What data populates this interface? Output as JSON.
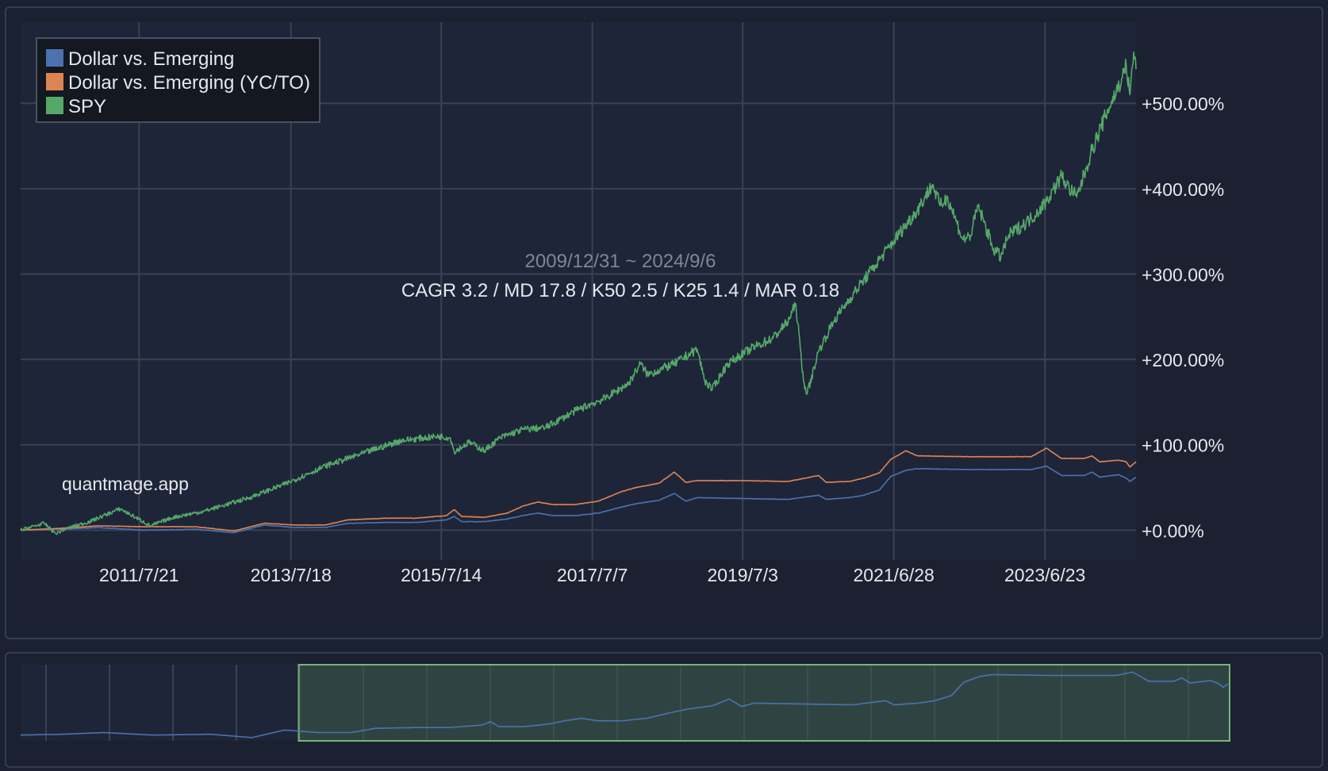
{
  "chart_data": {
    "type": "line",
    "title": "2009/12/31 ~ 2024/9/6",
    "subtitle": "CAGR 3.2 / MD 17.8 / K50 2.5 / K25 1.4 / MAR 0.18",
    "watermark": "quantmage.app",
    "x_tick_labels": [
      "2011/7/21",
      "2013/7/18",
      "2015/7/14",
      "2017/7/7",
      "2019/7/3",
      "2021/6/28",
      "2023/6/23"
    ],
    "y_tick_labels": [
      "+0.00%",
      "+100.00%",
      "+200.00%",
      "+300.00%",
      "+400.00%",
      "+500.00%"
    ],
    "ylim": [
      -35,
      595
    ],
    "xlim": [
      2009.99,
      2024.68
    ],
    "grid": true,
    "legend_position": "top-left",
    "series": [
      {
        "name": "Dollar vs. Emerging",
        "color": "#4c72b0",
        "points": [
          [
            2009.99,
            0
          ],
          [
            2010.5,
            1
          ],
          [
            2011.0,
            3
          ],
          [
            2011.6,
            0
          ],
          [
            2012.3,
            1
          ],
          [
            2012.8,
            -3
          ],
          [
            2013.2,
            6
          ],
          [
            2013.6,
            3
          ],
          [
            2014.0,
            3
          ],
          [
            2014.3,
            8
          ],
          [
            2014.8,
            9
          ],
          [
            2015.2,
            9
          ],
          [
            2015.6,
            12
          ],
          [
            2015.7,
            16
          ],
          [
            2015.8,
            10
          ],
          [
            2016.1,
            10
          ],
          [
            2016.4,
            13
          ],
          [
            2016.6,
            17
          ],
          [
            2016.8,
            20
          ],
          [
            2017.0,
            17
          ],
          [
            2017.3,
            17
          ],
          [
            2017.6,
            20
          ],
          [
            2017.9,
            27
          ],
          [
            2018.1,
            31
          ],
          [
            2018.4,
            35
          ],
          [
            2018.6,
            43
          ],
          [
            2018.75,
            34
          ],
          [
            2018.9,
            38
          ],
          [
            2019.5,
            37
          ],
          [
            2020.1,
            36
          ],
          [
            2020.5,
            41
          ],
          [
            2020.6,
            36
          ],
          [
            2020.9,
            38
          ],
          [
            2021.1,
            41
          ],
          [
            2021.3,
            47
          ],
          [
            2021.45,
            63
          ],
          [
            2021.65,
            70
          ],
          [
            2021.8,
            72
          ],
          [
            2022.5,
            71
          ],
          [
            2023.3,
            71
          ],
          [
            2023.5,
            75
          ],
          [
            2023.7,
            64
          ],
          [
            2024.0,
            64
          ],
          [
            2024.1,
            68
          ],
          [
            2024.2,
            62
          ],
          [
            2024.45,
            65
          ],
          [
            2024.55,
            61
          ],
          [
            2024.6,
            57
          ],
          [
            2024.68,
            62
          ]
        ]
      },
      {
        "name": "Dollar vs. Emerging (YC/TO)",
        "color": "#dd8452",
        "points": [
          [
            2009.99,
            0
          ],
          [
            2010.5,
            2
          ],
          [
            2011.0,
            5
          ],
          [
            2011.6,
            4
          ],
          [
            2012.3,
            4
          ],
          [
            2012.8,
            -1
          ],
          [
            2013.2,
            8
          ],
          [
            2013.6,
            6
          ],
          [
            2014.0,
            6
          ],
          [
            2014.3,
            12
          ],
          [
            2014.8,
            14
          ],
          [
            2015.2,
            14
          ],
          [
            2015.6,
            17
          ],
          [
            2015.7,
            24
          ],
          [
            2015.8,
            16
          ],
          [
            2016.1,
            15
          ],
          [
            2016.4,
            20
          ],
          [
            2016.6,
            28
          ],
          [
            2016.8,
            33
          ],
          [
            2017.0,
            30
          ],
          [
            2017.3,
            30
          ],
          [
            2017.6,
            34
          ],
          [
            2017.9,
            45
          ],
          [
            2018.1,
            50
          ],
          [
            2018.4,
            55
          ],
          [
            2018.6,
            68
          ],
          [
            2018.75,
            56
          ],
          [
            2018.9,
            58
          ],
          [
            2019.5,
            58
          ],
          [
            2020.1,
            57
          ],
          [
            2020.5,
            64
          ],
          [
            2020.6,
            56
          ],
          [
            2020.9,
            57
          ],
          [
            2021.1,
            61
          ],
          [
            2021.3,
            67
          ],
          [
            2021.45,
            83
          ],
          [
            2021.65,
            93
          ],
          [
            2021.8,
            87
          ],
          [
            2022.5,
            86
          ],
          [
            2023.3,
            86
          ],
          [
            2023.5,
            96
          ],
          [
            2023.7,
            84
          ],
          [
            2024.0,
            84
          ],
          [
            2024.1,
            87
          ],
          [
            2024.2,
            80
          ],
          [
            2024.45,
            82
          ],
          [
            2024.55,
            80
          ],
          [
            2024.6,
            74
          ],
          [
            2024.68,
            80
          ]
        ]
      },
      {
        "name": "SPY",
        "color": "#55a868",
        "points": [
          [
            2009.99,
            0
          ],
          [
            2010.3,
            8
          ],
          [
            2010.45,
            -4
          ],
          [
            2010.6,
            2
          ],
          [
            2010.9,
            10
          ],
          [
            2011.3,
            25
          ],
          [
            2011.6,
            10
          ],
          [
            2011.7,
            5
          ],
          [
            2012.0,
            15
          ],
          [
            2012.4,
            22
          ],
          [
            2012.7,
            30
          ],
          [
            2013.0,
            38
          ],
          [
            2013.5,
            55
          ],
          [
            2014.0,
            75
          ],
          [
            2014.5,
            90
          ],
          [
            2015.0,
            105
          ],
          [
            2015.5,
            110
          ],
          [
            2015.65,
            108
          ],
          [
            2015.7,
            92
          ],
          [
            2015.9,
            103
          ],
          [
            2016.1,
            93
          ],
          [
            2016.3,
            108
          ],
          [
            2016.6,
            118
          ],
          [
            2016.9,
            120
          ],
          [
            2017.3,
            140
          ],
          [
            2017.7,
            155
          ],
          [
            2018.0,
            172
          ],
          [
            2018.15,
            195
          ],
          [
            2018.25,
            182
          ],
          [
            2018.6,
            195
          ],
          [
            2018.9,
            212
          ],
          [
            2019.0,
            175
          ],
          [
            2019.1,
            165
          ],
          [
            2019.3,
            195
          ],
          [
            2019.6,
            212
          ],
          [
            2019.9,
            225
          ],
          [
            2020.1,
            245
          ],
          [
            2020.2,
            265
          ],
          [
            2020.3,
            175
          ],
          [
            2020.35,
            160
          ],
          [
            2020.5,
            210
          ],
          [
            2020.7,
            245
          ],
          [
            2020.9,
            270
          ],
          [
            2021.2,
            305
          ],
          [
            2021.5,
            340
          ],
          [
            2021.8,
            375
          ],
          [
            2022.0,
            405
          ],
          [
            2022.1,
            380
          ],
          [
            2022.2,
            390
          ],
          [
            2022.4,
            340
          ],
          [
            2022.5,
            345
          ],
          [
            2022.6,
            380
          ],
          [
            2022.8,
            330
          ],
          [
            2022.9,
            320
          ],
          [
            2023.0,
            345
          ],
          [
            2023.3,
            365
          ],
          [
            2023.5,
            385
          ],
          [
            2023.7,
            415
          ],
          [
            2023.8,
            400
          ],
          [
            2023.9,
            390
          ],
          [
            2024.1,
            445
          ],
          [
            2024.3,
            490
          ],
          [
            2024.5,
            530
          ],
          [
            2024.55,
            545
          ],
          [
            2024.6,
            510
          ],
          [
            2024.65,
            560
          ],
          [
            2024.68,
            540
          ]
        ]
      }
    ]
  },
  "navigator": {
    "line_color": "#4c72b0",
    "selection_start_fraction": 0.23,
    "selection_end_fraction": 1.0
  }
}
